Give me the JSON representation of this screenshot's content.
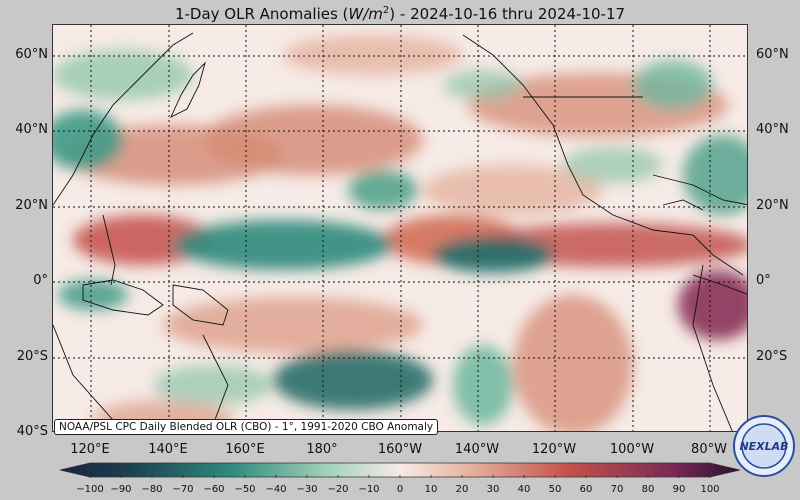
{
  "title": {
    "prefix": "1-Day OLR Anomalies (",
    "unit_base": "W/m",
    "unit_exp": "2",
    "suffix": ") - 2024-10-16 thru 2024-10-17"
  },
  "source_note": "NOAA/PSL CPC Daily Blended OLR (CBO) - 1°, 1991-2020 CBO Anomaly",
  "logo_text": "NEXLAB",
  "colors": {
    "background": "#c8c8c8",
    "strong_negative": "#1c3f4f",
    "negative": "#2e8a7c",
    "neutral": "#f6ebe6",
    "positive": "#d98a72",
    "strong_positive": "#5e1f4b"
  },
  "map": {
    "lat_labels_left": [
      "60°N",
      "40°N",
      "20°N",
      "0°",
      "20°S",
      "40°S"
    ],
    "lat_labels_right": [
      "60°N",
      "40°N",
      "20°N",
      "0°",
      "20°S"
    ],
    "lat_values": [
      60,
      40,
      20,
      0,
      -20,
      -40
    ],
    "lon_labels": [
      "120°E",
      "140°E",
      "160°E",
      "180°",
      "160°W",
      "140°W",
      "120°W",
      "100°W",
      "80°W"
    ],
    "lon_values": [
      120,
      140,
      160,
      180,
      200,
      220,
      240,
      260,
      280
    ],
    "extent": {
      "lon_min": 110,
      "lon_max": 290,
      "lat_min": -40,
      "lat_max": 67
    }
  },
  "colorbar": {
    "ticks": [
      "−100",
      "−90",
      "−80",
      "−70",
      "−60",
      "−50",
      "−40",
      "−30",
      "−20",
      "−10",
      "0",
      "10",
      "20",
      "30",
      "40",
      "50",
      "60",
      "70",
      "80",
      "90",
      "100"
    ],
    "min": -100,
    "max": 100
  }
}
